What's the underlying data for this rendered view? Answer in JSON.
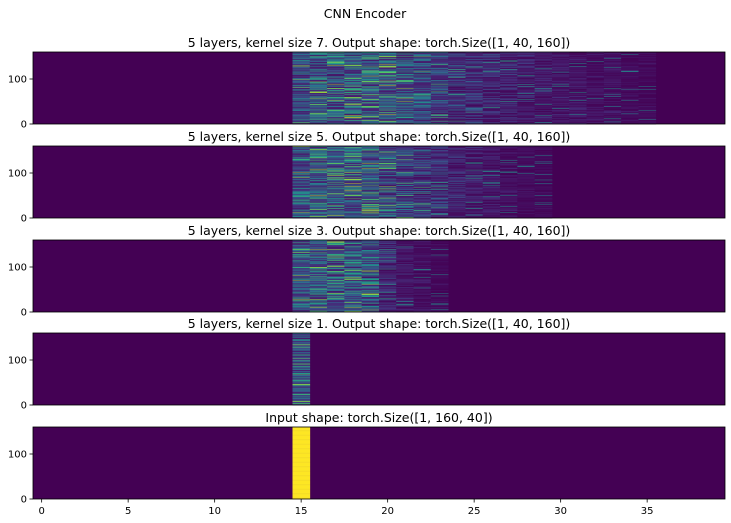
{
  "figure_title": "CNN Encoder",
  "chart_data": [
    {
      "type": "heatmap",
      "title": "5 layers, kernel size 7. Output shape: torch.Size([1, 40, 160])",
      "x_range": [
        -0.5,
        39.5
      ],
      "y_range": [
        0,
        160
      ],
      "y_ticks": [
        0,
        100
      ],
      "show_x_ticks": false,
      "colormap": "viridis",
      "active_columns": [
        15,
        16,
        17,
        18,
        19,
        20,
        21,
        22,
        23,
        24,
        25,
        26,
        27,
        28,
        29,
        30,
        31,
        32,
        33,
        34,
        35
      ],
      "column_mean_intensity": [
        0.35,
        0.4,
        0.42,
        0.45,
        0.42,
        0.45,
        0.4,
        0.3,
        0.26,
        0.22,
        0.2,
        0.17,
        0.14,
        0.12,
        0.1,
        0.09,
        0.08,
        0.07,
        0.06,
        0.05,
        0.04
      ]
    },
    {
      "type": "heatmap",
      "title": "5 layers, kernel size 5. Output shape: torch.Size([1, 40, 160])",
      "x_range": [
        -0.5,
        39.5
      ],
      "y_range": [
        0,
        160
      ],
      "y_ticks": [
        0,
        100
      ],
      "show_x_ticks": false,
      "colormap": "viridis",
      "active_columns": [
        15,
        16,
        17,
        18,
        19,
        20,
        21,
        22,
        23,
        24,
        25,
        26,
        27,
        28,
        29
      ],
      "column_mean_intensity": [
        0.4,
        0.42,
        0.45,
        0.45,
        0.42,
        0.38,
        0.3,
        0.25,
        0.2,
        0.16,
        0.12,
        0.09,
        0.07,
        0.05,
        0.04
      ]
    },
    {
      "type": "heatmap",
      "title": "5 layers, kernel size 3. Output shape: torch.Size([1, 40, 160])",
      "x_range": [
        -0.5,
        39.5
      ],
      "y_range": [
        0,
        160
      ],
      "y_ticks": [
        0,
        100
      ],
      "show_x_ticks": false,
      "colormap": "viridis",
      "active_columns": [
        15,
        16,
        17,
        18,
        19,
        20,
        21,
        22,
        23
      ],
      "column_mean_intensity": [
        0.4,
        0.42,
        0.44,
        0.4,
        0.38,
        0.15,
        0.1,
        0.06,
        0.04
      ]
    },
    {
      "type": "heatmap",
      "title": "5 layers, kernel size 1. Output shape: torch.Size([1, 40, 160])",
      "x_range": [
        -0.5,
        39.5
      ],
      "y_range": [
        0,
        160
      ],
      "y_ticks": [
        0,
        100
      ],
      "show_x_ticks": false,
      "colormap": "viridis",
      "active_columns": [
        15
      ],
      "column_mean_intensity": [
        0.45
      ]
    },
    {
      "type": "heatmap",
      "title": "Input shape: torch.Size([1, 160, 40])",
      "x_range": [
        -0.5,
        39.5
      ],
      "y_range": [
        0,
        160
      ],
      "y_ticks": [
        0,
        100
      ],
      "x_ticks": [
        0,
        5,
        10,
        15,
        20,
        25,
        30,
        35
      ],
      "show_x_ticks": true,
      "colormap": "viridis",
      "active_columns": [
        15
      ],
      "column_mean_intensity": [
        1.0
      ],
      "uniform_columns": true
    }
  ]
}
